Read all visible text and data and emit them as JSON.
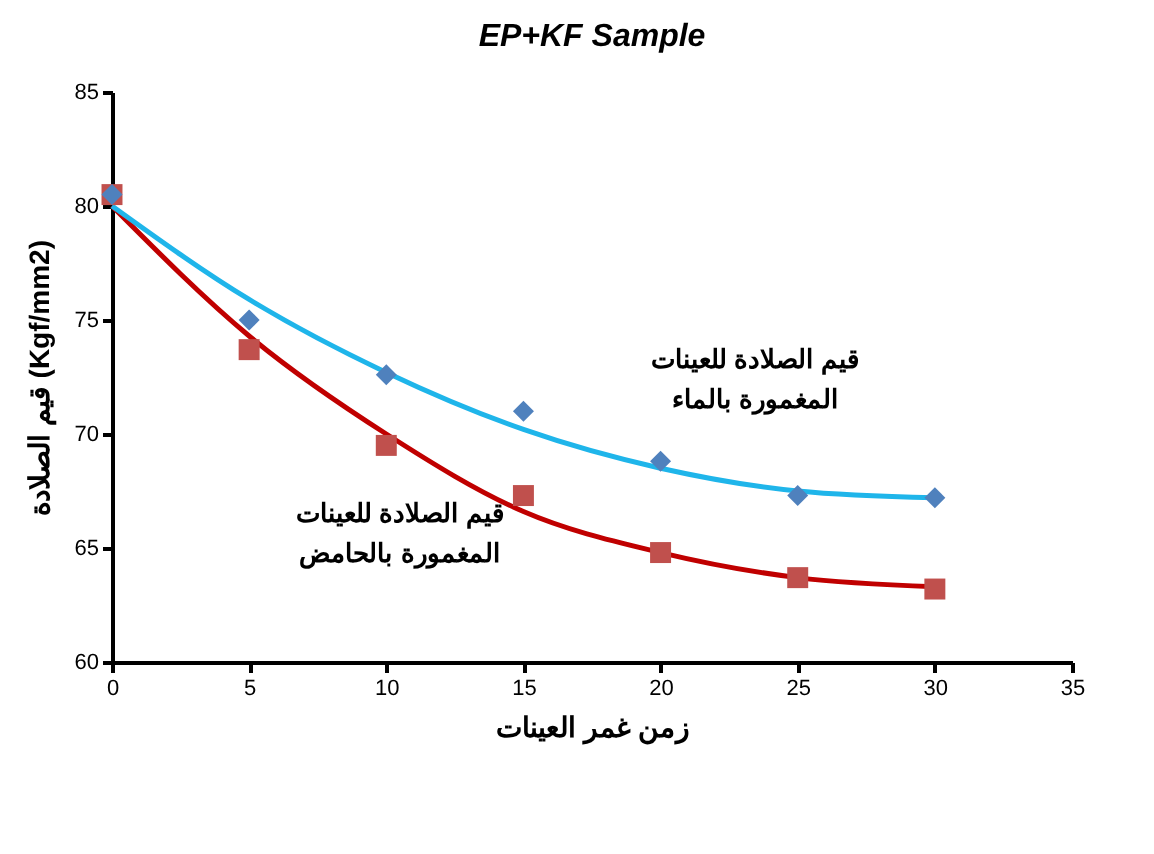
{
  "chart_data": {
    "type": "scatter",
    "title": "EP+KF Sample",
    "xlabel": "زمن غمر العينات",
    "ylabel": "قيم الصلادة (Kgf/mm2)",
    "xlim": [
      0,
      35
    ],
    "xticks": [
      0,
      5,
      10,
      15,
      20,
      25,
      30,
      35
    ],
    "ylim": [
      60,
      85
    ],
    "yticks": [
      60,
      65,
      70,
      75,
      80,
      85
    ],
    "grid": false,
    "series": [
      {
        "name": "قيم الصلادة للعينات\nالمغمورة بالماء",
        "type": "scatter",
        "marker": "diamond",
        "color": "#4f81bd",
        "x": [
          0,
          5,
          10,
          15,
          20,
          25,
          30
        ],
        "values": [
          80.5,
          75.0,
          72.6,
          71.0,
          68.8,
          67.3,
          67.2
        ]
      },
      {
        "name": "قيم الصلادة للعينات\nالمغمورة بالحامض",
        "type": "scatter",
        "marker": "square",
        "color": "#c0504d",
        "x": [
          0,
          5,
          10,
          15,
          20,
          25,
          30
        ],
        "values": [
          80.5,
          73.7,
          69.5,
          67.3,
          64.8,
          63.7,
          63.2
        ]
      },
      {
        "type": "line",
        "marker": "none",
        "line_style": "solid",
        "color": "#1fb5ea",
        "x": [
          0,
          5,
          10,
          15,
          20,
          25,
          30
        ],
        "values": [
          80.0,
          75.9,
          72.7,
          70.2,
          68.5,
          67.5,
          67.2
        ]
      },
      {
        "type": "line",
        "marker": "none",
        "line_style": "solid",
        "color": "#c00000",
        "x": [
          0,
          5,
          10,
          15,
          20,
          25,
          30
        ],
        "values": [
          80.0,
          74.3,
          70.0,
          66.6,
          64.8,
          63.7,
          63.3
        ]
      }
    ]
  }
}
